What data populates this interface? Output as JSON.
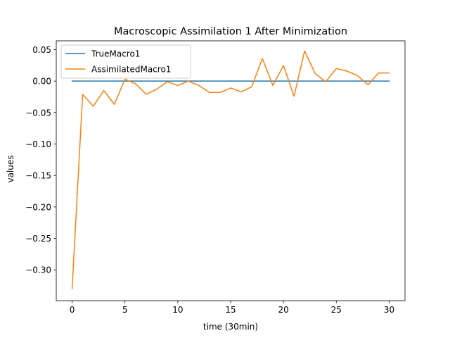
{
  "chart_data": {
    "type": "line",
    "title": "Macroscopic Assimilation 1 After Minimization",
    "xlabel": "time (30min)",
    "ylabel": "values",
    "xlim": [
      -1.5,
      31.5
    ],
    "ylim": [
      -0.349,
      0.064
    ],
    "xticks": [
      0,
      5,
      10,
      15,
      20,
      25,
      30
    ],
    "xtick_labels": [
      "0",
      "5",
      "10",
      "15",
      "20",
      "25",
      "30"
    ],
    "yticks": [
      0.05,
      0.0,
      -0.05,
      -0.1,
      -0.15,
      -0.2,
      -0.25,
      -0.3
    ],
    "ytick_labels": [
      "0.05",
      "0.00",
      "−0.05",
      "−0.10",
      "−0.15",
      "−0.20",
      "−0.25",
      "−0.30"
    ],
    "grid": false,
    "legend_position": "upper-left",
    "series": [
      {
        "name": "TrueMacro1",
        "color": "#1f77b4",
        "x": [
          0,
          30
        ],
        "y": [
          0.0,
          0.0
        ]
      },
      {
        "name": "AssimilatedMacro1",
        "color": "#ff7f0e",
        "x": [
          0,
          1,
          2,
          3,
          4,
          5,
          6,
          7,
          8,
          9,
          10,
          11,
          12,
          13,
          14,
          15,
          16,
          17,
          18,
          19,
          20,
          21,
          22,
          23,
          24,
          25,
          26,
          27,
          28,
          29,
          30
        ],
        "y": [
          -0.33,
          -0.021,
          -0.04,
          -0.015,
          -0.037,
          0.003,
          -0.004,
          -0.021,
          -0.013,
          -0.001,
          -0.007,
          0.0,
          -0.007,
          -0.018,
          -0.018,
          -0.011,
          -0.017,
          -0.009,
          0.036,
          -0.007,
          0.025,
          -0.024,
          0.048,
          0.012,
          -0.001,
          0.02,
          0.016,
          0.009,
          -0.006,
          0.013,
          0.013
        ]
      }
    ]
  }
}
